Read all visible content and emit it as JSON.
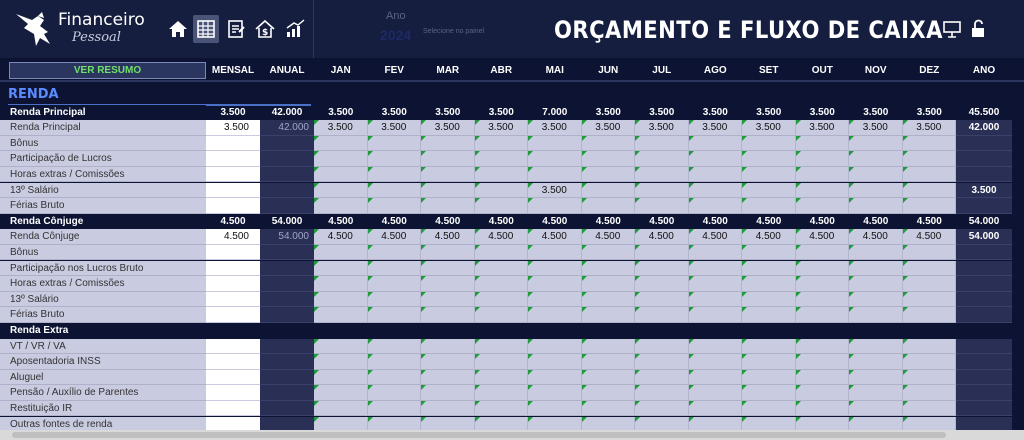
{
  "header": {
    "brand": "Financeiro",
    "brand_sub": "Pessoal",
    "nav_icons": [
      "home-icon",
      "spreadsheet-icon",
      "notes-icon",
      "money-house-icon",
      "chart-growth-icon"
    ],
    "ano_label": "Ano",
    "ano_value": "2024",
    "ano_hint": "Selecione no painel",
    "title": "ORÇAMENTO E FLUXO DE CAIXA",
    "right_icons": [
      "presentation-icon",
      "unlock-icon"
    ]
  },
  "columns": {
    "resumo_button": "VER RESUMO",
    "mensal": "MENSAL",
    "anual": "ANUAL",
    "months": [
      "JAN",
      "FEV",
      "MAR",
      "ABR",
      "MAI",
      "JUN",
      "JUL",
      "AGO",
      "SET",
      "OUT",
      "NOV",
      "DEZ"
    ],
    "ano": "ANO"
  },
  "section_title": "RENDA",
  "rows": [
    {
      "label": "Renda Principal",
      "type": "head",
      "mensal": "3.500",
      "anual": "42.000",
      "months": [
        "3.500",
        "3.500",
        "3.500",
        "3.500",
        "7.000",
        "3.500",
        "3.500",
        "3.500",
        "3.500",
        "3.500",
        "3.500",
        "3.500"
      ],
      "ano": "45.500"
    },
    {
      "label": "Renda Principal",
      "type": "item",
      "mensal": "3.500",
      "anual": "42.000",
      "months": [
        "3.500",
        "3.500",
        "3.500",
        "3.500",
        "3.500",
        "3.500",
        "3.500",
        "3.500",
        "3.500",
        "3.500",
        "3.500",
        "3.500"
      ],
      "ano": "42.000"
    },
    {
      "label": "Bônus",
      "type": "item",
      "mensal": "",
      "anual": "",
      "months": [
        "",
        "",
        "",
        "",
        "",
        "",
        "",
        "",
        "",
        "",
        "",
        ""
      ],
      "ano": ""
    },
    {
      "label": "Participação de Lucros",
      "type": "item",
      "mensal": "",
      "anual": "",
      "months": [
        "",
        "",
        "",
        "",
        "",
        "",
        "",
        "",
        "",
        "",
        "",
        ""
      ],
      "ano": ""
    },
    {
      "label": "Horas extras / Comissões",
      "type": "item",
      "mensal": "",
      "anual": "",
      "months": [
        "",
        "",
        "",
        "",
        "",
        "",
        "",
        "",
        "",
        "",
        "",
        ""
      ],
      "ano": ""
    },
    {
      "label": "13º Salário",
      "type": "item",
      "mensal": "",
      "anual": "",
      "months": [
        "",
        "",
        "",
        "",
        "3.500",
        "",
        "",
        "",
        "",
        "",
        "",
        ""
      ],
      "ano": "3.500"
    },
    {
      "label": "Férias Bruto",
      "type": "item",
      "mensal": "",
      "anual": "",
      "months": [
        "",
        "",
        "",
        "",
        "",
        "",
        "",
        "",
        "",
        "",
        "",
        ""
      ],
      "ano": ""
    },
    {
      "label": "Renda Cônjuge",
      "type": "head",
      "mensal": "4.500",
      "anual": "54.000",
      "months": [
        "4.500",
        "4.500",
        "4.500",
        "4.500",
        "4.500",
        "4.500",
        "4.500",
        "4.500",
        "4.500",
        "4.500",
        "4.500",
        "4.500"
      ],
      "ano": "54.000"
    },
    {
      "label": "Renda Cônjuge",
      "type": "item",
      "mensal": "4.500",
      "anual": "54.000",
      "months": [
        "4.500",
        "4.500",
        "4.500",
        "4.500",
        "4.500",
        "4.500",
        "4.500",
        "4.500",
        "4.500",
        "4.500",
        "4.500",
        "4.500"
      ],
      "ano": "54.000"
    },
    {
      "label": "Bônus",
      "type": "item",
      "mensal": "",
      "anual": "",
      "months": [
        "",
        "",
        "",
        "",
        "",
        "",
        "",
        "",
        "",
        "",
        "",
        ""
      ],
      "ano": ""
    },
    {
      "label": "Participação nos Lucros Bruto",
      "type": "item",
      "mensal": "",
      "anual": "",
      "months": [
        "",
        "",
        "",
        "",
        "",
        "",
        "",
        "",
        "",
        "",
        "",
        ""
      ],
      "ano": ""
    },
    {
      "label": "Horas extras / Comissões",
      "type": "item",
      "mensal": "",
      "anual": "",
      "months": [
        "",
        "",
        "",
        "",
        "",
        "",
        "",
        "",
        "",
        "",
        "",
        ""
      ],
      "ano": ""
    },
    {
      "label": "13º Salário",
      "type": "item",
      "mensal": "",
      "anual": "",
      "months": [
        "",
        "",
        "",
        "",
        "",
        "",
        "",
        "",
        "",
        "",
        "",
        ""
      ],
      "ano": ""
    },
    {
      "label": "Férias Bruto",
      "type": "item",
      "mensal": "",
      "anual": "",
      "months": [
        "",
        "",
        "",
        "",
        "",
        "",
        "",
        "",
        "",
        "",
        "",
        ""
      ],
      "ano": ""
    },
    {
      "label": "Renda Extra",
      "type": "head",
      "mensal": "",
      "anual": "",
      "months": [
        "",
        "",
        "",
        "",
        "",
        "",
        "",
        "",
        "",
        "",
        "",
        ""
      ],
      "ano": ""
    },
    {
      "label": "VT / VR / VA",
      "type": "item",
      "mensal": "",
      "anual": "",
      "months": [
        "",
        "",
        "",
        "",
        "",
        "",
        "",
        "",
        "",
        "",
        "",
        ""
      ],
      "ano": ""
    },
    {
      "label": "Aposentadoria INSS",
      "type": "item",
      "mensal": "",
      "anual": "",
      "months": [
        "",
        "",
        "",
        "",
        "",
        "",
        "",
        "",
        "",
        "",
        "",
        ""
      ],
      "ano": ""
    },
    {
      "label": "Aluguel",
      "type": "item",
      "mensal": "",
      "anual": "",
      "months": [
        "",
        "",
        "",
        "",
        "",
        "",
        "",
        "",
        "",
        "",
        "",
        ""
      ],
      "ano": ""
    },
    {
      "label": "Pensão / Auxílio de Parentes",
      "type": "item",
      "mensal": "",
      "anual": "",
      "months": [
        "",
        "",
        "",
        "",
        "",
        "",
        "",
        "",
        "",
        "",
        "",
        ""
      ],
      "ano": ""
    },
    {
      "label": "Restituição IR",
      "type": "item",
      "mensal": "",
      "anual": "",
      "months": [
        "",
        "",
        "",
        "",
        "",
        "",
        "",
        "",
        "",
        "",
        "",
        ""
      ],
      "ano": ""
    },
    {
      "label": "Outras fontes de renda",
      "type": "item",
      "mensal": "",
      "anual": "",
      "months": [
        "",
        "",
        "",
        "",
        "",
        "",
        "",
        "",
        "",
        "",
        "",
        ""
      ],
      "ano": ""
    }
  ]
}
